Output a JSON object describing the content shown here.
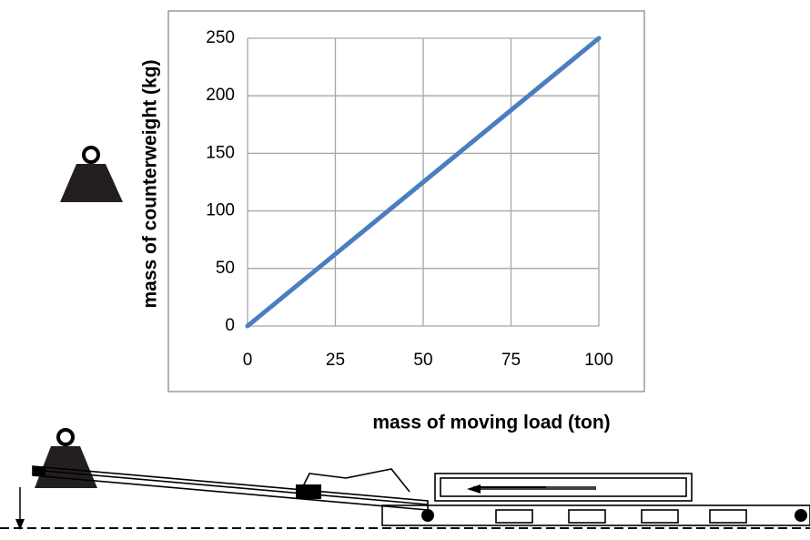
{
  "chart_data": {
    "type": "line",
    "x_label": "mass of moving load (ton)",
    "y_label": "mass of counterweight (kg)",
    "x": [
      0,
      100
    ],
    "values": [
      0,
      250
    ],
    "color": "#4a7ec0",
    "xlim": [
      0,
      100
    ],
    "xticks": [
      0,
      25,
      50,
      75,
      100
    ],
    "ylim": [
      0,
      250
    ],
    "yticks": [
      0,
      50,
      100,
      150,
      200,
      250
    ],
    "grid": true
  }
}
